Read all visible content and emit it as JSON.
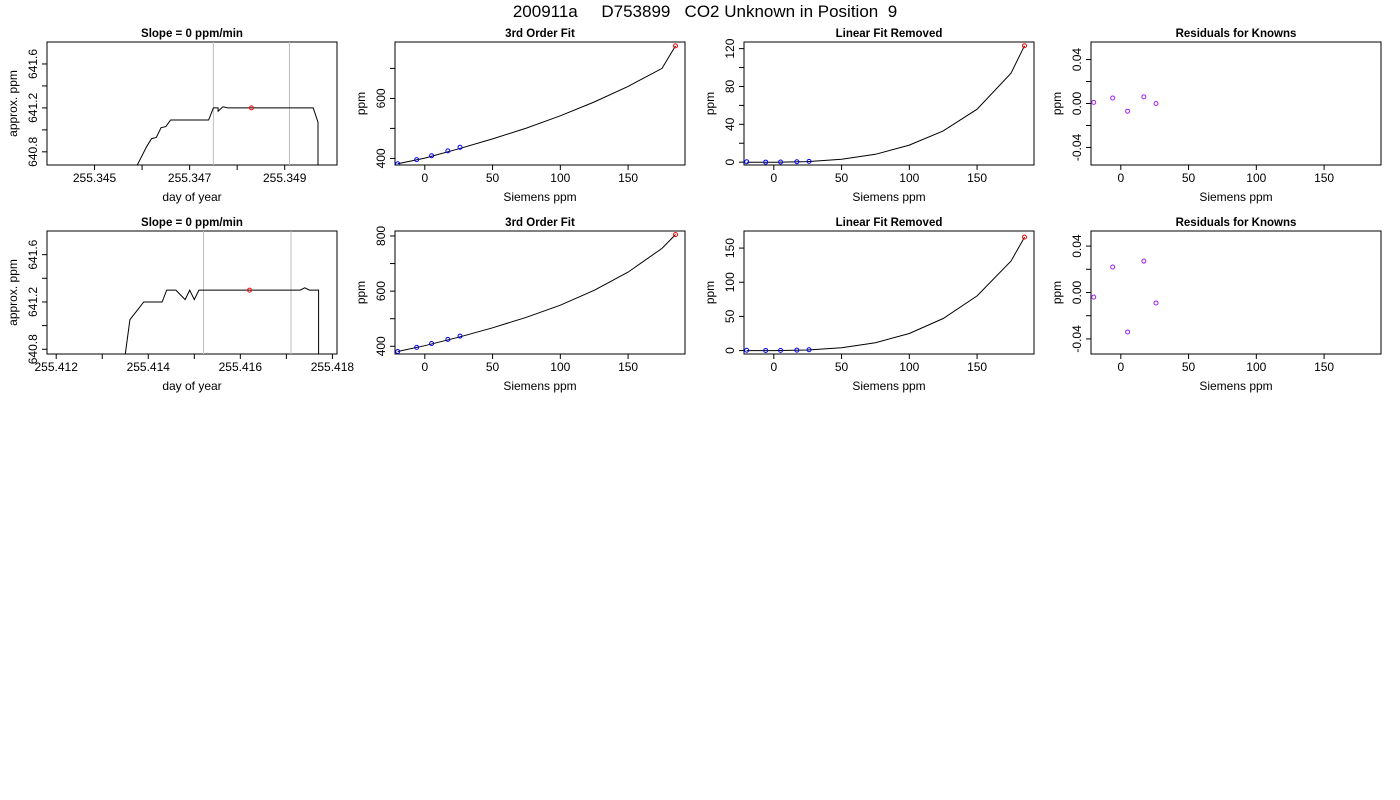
{
  "title": "200911a     D753899   CO2 Unknown in Position  9",
  "colors": {
    "axis": "#000000",
    "trace": "#000000",
    "vline": "#bebebe",
    "known_points": "#0000ff",
    "unknown_point": "#ff0000",
    "residual_points": "#a020f0"
  },
  "chart_data": [
    {
      "type": "line",
      "title": "Slope =  0  ppm/min",
      "xlabel": "day of year",
      "ylabel": "approx. ppm",
      "xlim": [
        255.344,
        255.3501
      ],
      "ylim": [
        640.68,
        641.8
      ],
      "xticks": [
        255.345,
        255.346,
        255.347,
        255.348,
        255.349
      ],
      "xticklabels": [
        "255.345",
        "",
        "255.347",
        "",
        "255.349"
      ],
      "yticks": [
        640.8,
        641.0,
        641.2,
        641.4,
        641.6
      ],
      "yticklabels": [
        "640.8",
        "",
        "641.2",
        "",
        "641.6"
      ],
      "vlines": [
        255.3475,
        255.3491
      ],
      "marker": {
        "x": 255.3483,
        "y": 641.2
      },
      "x": [
        255.3459,
        255.3461,
        255.3462,
        255.3463,
        255.3464,
        255.3465,
        255.3466,
        255.3467,
        255.3468,
        255.3469,
        255.3472,
        255.3474,
        255.3475,
        255.3476,
        255.3476,
        255.3477,
        255.3478,
        255.3484,
        255.3496,
        255.3497,
        255.3497
      ],
      "y": [
        640.68,
        640.85,
        640.92,
        640.93,
        641.02,
        641.03,
        641.09,
        641.09,
        641.09,
        641.09,
        641.09,
        641.09,
        641.2,
        641.2,
        641.17,
        641.21,
        641.2,
        641.2,
        641.2,
        641.07,
        640.68
      ]
    },
    {
      "type": "scatter",
      "title": "3rd Order Fit",
      "xlabel": "Siemens ppm",
      "ylabel": "ppm",
      "xlim": [
        -22,
        192
      ],
      "ylim": [
        378,
        788
      ],
      "xticks": [
        0,
        50,
        100,
        150
      ],
      "xticklabels": [
        "0",
        "50",
        "100",
        "150"
      ],
      "yticks": [
        400,
        500,
        600,
        700
      ],
      "yticklabels": [
        "400",
        "",
        "600",
        ""
      ],
      "known": {
        "x": [
          -20,
          -6,
          5,
          17,
          26
        ],
        "y": [
          382,
          396,
          409,
          425,
          437
        ]
      },
      "unknown": {
        "x": [
          185
        ],
        "y": [
          775
        ]
      },
      "fit": {
        "x": [
          -20,
          0,
          25,
          50,
          75,
          100,
          125,
          150,
          175,
          185
        ],
        "y": [
          382,
          401,
          432,
          465,
          501,
          542,
          588,
          640,
          700,
          775
        ]
      }
    },
    {
      "type": "scatter",
      "title": "Linear Fit Removed",
      "xlabel": "Siemens ppm",
      "ylabel": "ppm",
      "xlim": [
        -22,
        192
      ],
      "ylim": [
        -3,
        127
      ],
      "xticks": [
        0,
        50,
        100,
        150
      ],
      "xticklabels": [
        "0",
        "50",
        "100",
        "150"
      ],
      "yticks": [
        0,
        20,
        40,
        60,
        80,
        100,
        120
      ],
      "yticklabels": [
        "0",
        "",
        "40",
        "",
        "80",
        "",
        "120"
      ],
      "known": {
        "x": [
          -20,
          -6,
          5,
          17,
          26
        ],
        "y": [
          0.4,
          0.1,
          0.2,
          0.4,
          0.8
        ]
      },
      "unknown": {
        "x": [
          185
        ],
        "y": [
          123
        ]
      },
      "fit": {
        "x": [
          -20,
          0,
          25,
          50,
          75,
          100,
          125,
          150,
          175,
          185
        ],
        "y": [
          0,
          0,
          0.6,
          3.0,
          8.3,
          18,
          33,
          56,
          94,
          123
        ]
      }
    },
    {
      "type": "scatter",
      "title": "Residuals for Knowns",
      "xlabel": "Siemens ppm",
      "ylabel": "ppm",
      "xlim": [
        -22,
        192
      ],
      "ylim": [
        -0.056,
        0.056
      ],
      "xticks": [
        0,
        50,
        100,
        150
      ],
      "xticklabels": [
        "0",
        "50",
        "100",
        "150"
      ],
      "yticks": [
        -0.04,
        -0.02,
        0.0,
        0.02,
        0.04
      ],
      "yticklabels": [
        "-0.04",
        "",
        "0.00",
        "",
        "0.04"
      ],
      "known": {
        "x": [
          -20,
          -6,
          5,
          17,
          26
        ],
        "y": [
          0.001,
          0.005,
          -0.007,
          0.006,
          0.0
        ]
      }
    },
    {
      "type": "line",
      "title": "Slope =  0  ppm/min",
      "xlabel": "day of year",
      "ylabel": "approx. ppm",
      "xlim": [
        255.4118,
        255.4181
      ],
      "ylim": [
        640.76,
        641.8
      ],
      "xticks": [
        255.412,
        255.413,
        255.414,
        255.415,
        255.416,
        255.417,
        255.418
      ],
      "xticklabels": [
        "255.412",
        "",
        "255.414",
        "",
        "255.416",
        "",
        "255.418"
      ],
      "yticks": [
        640.8,
        641.0,
        641.2,
        641.4,
        641.6
      ],
      "yticklabels": [
        "640.8",
        "",
        "641.2",
        "",
        "641.6"
      ],
      "vlines": [
        255.4152,
        255.4171
      ],
      "marker": {
        "x": 255.4162,
        "y": 641.3
      },
      "x": [
        255.4135,
        255.4136,
        255.4137,
        255.4138,
        255.4139,
        255.414,
        255.4141,
        255.4143,
        255.4144,
        255.4145,
        255.4146,
        255.4148,
        255.4149,
        255.415,
        255.4151,
        255.4152,
        255.4155,
        255.416,
        255.4173,
        255.4174,
        255.4175,
        255.4177,
        255.4177
      ],
      "y": [
        640.76,
        641.05,
        641.1,
        641.15,
        641.2,
        641.2,
        641.2,
        641.2,
        641.3,
        641.3,
        641.3,
        641.22,
        641.3,
        641.22,
        641.3,
        641.3,
        641.3,
        641.3,
        641.3,
        641.32,
        641.3,
        641.3,
        640.76
      ]
    },
    {
      "type": "scatter",
      "title": "3rd Order Fit",
      "xlabel": "Siemens ppm",
      "ylabel": "ppm",
      "xlim": [
        -22,
        192
      ],
      "ylim": [
        372,
        818
      ],
      "xticks": [
        0,
        50,
        100,
        150
      ],
      "xticklabels": [
        "0",
        "50",
        "100",
        "150"
      ],
      "yticks": [
        400,
        500,
        600,
        700,
        800
      ],
      "yticklabels": [
        "400",
        "",
        "600",
        "",
        "800"
      ],
      "known": {
        "x": [
          -20,
          -6,
          5,
          17,
          26
        ],
        "y": [
          381,
          396,
          410,
          425,
          437
        ]
      },
      "unknown": {
        "x": [
          185
        ],
        "y": [
          805
        ]
      },
      "fit": {
        "x": [
          -20,
          0,
          25,
          50,
          75,
          100,
          125,
          150,
          175,
          185
        ],
        "y": [
          381,
          402,
          433,
          467,
          505,
          549,
          603,
          669,
          755,
          805
        ]
      }
    },
    {
      "type": "scatter",
      "title": "Linear Fit Removed",
      "xlabel": "Siemens ppm",
      "ylabel": "ppm",
      "xlim": [
        -22,
        192
      ],
      "ylim": [
        -5,
        175
      ],
      "xticks": [
        0,
        50,
        100,
        150
      ],
      "xticklabels": [
        "0",
        "50",
        "100",
        "150"
      ],
      "yticks": [
        0,
        50,
        100,
        150
      ],
      "yticklabels": [
        "0",
        "50",
        "100",
        "150"
      ],
      "known": {
        "x": [
          -20,
          -6,
          5,
          17,
          26
        ],
        "y": [
          0.5,
          0.2,
          0.3,
          0.6,
          1.2
        ]
      },
      "unknown": {
        "x": [
          185
        ],
        "y": [
          166
        ]
      },
      "fit": {
        "x": [
          -20,
          0,
          25,
          50,
          75,
          100,
          125,
          150,
          175,
          185
        ],
        "y": [
          0,
          0,
          0.8,
          4.2,
          11.6,
          25,
          47,
          80,
          131,
          166
        ]
      }
    },
    {
      "type": "scatter",
      "title": "Residuals for Knowns",
      "xlabel": "Siemens ppm",
      "ylabel": "ppm",
      "xlim": [
        -22,
        192
      ],
      "ylim": [
        -0.053,
        0.053
      ],
      "xticks": [
        0,
        50,
        100,
        150
      ],
      "xticklabels": [
        "0",
        "50",
        "100",
        "150"
      ],
      "yticks": [
        -0.04,
        -0.02,
        0.0,
        0.02,
        0.04
      ],
      "yticklabels": [
        "-0.04",
        "",
        "0.00",
        "",
        "0.04"
      ],
      "known": {
        "x": [
          -20,
          -6,
          5,
          17,
          26
        ],
        "y": [
          -0.004,
          0.022,
          -0.034,
          0.027,
          -0.009
        ]
      }
    }
  ]
}
